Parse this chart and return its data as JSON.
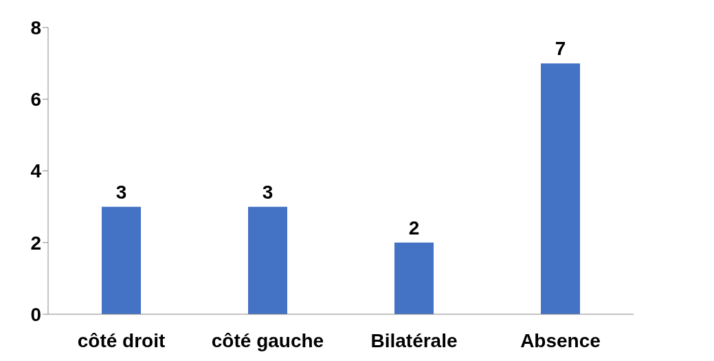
{
  "chart_data": {
    "type": "bar",
    "categories": [
      "côté droit",
      "côté gauche",
      "Bilatérale",
      "Absence"
    ],
    "values": [
      3,
      3,
      2,
      7
    ],
    "color": "#4472c4",
    "ylim": [
      0,
      8
    ],
    "yticks": [
      0,
      2,
      4,
      6,
      8
    ],
    "grid": false,
    "data_labels": true
  }
}
